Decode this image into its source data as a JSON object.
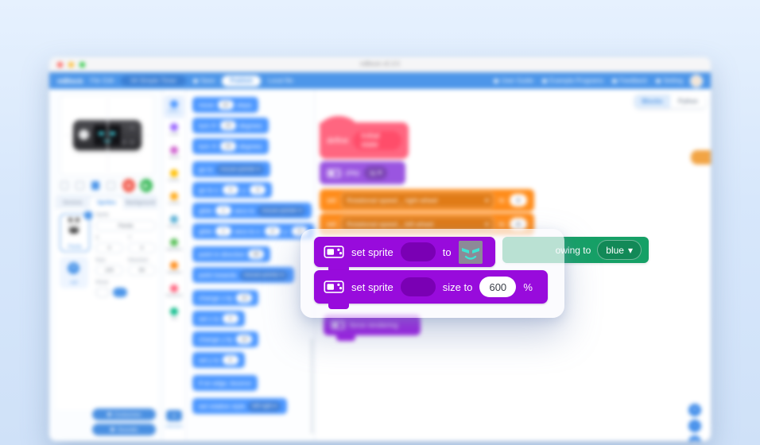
{
  "window": {
    "title": "mBlock v5.3.5"
  },
  "menubar": {
    "brand": "mBlock",
    "left_items": [
      "File",
      "Edit"
    ],
    "project_name": "04 Simple Timer",
    "save_label": "Save",
    "publish_label": "Publish",
    "local_file_label": "Local file",
    "right_items": [
      "User Guide",
      "Example Programs",
      "Feedback",
      "Setting"
    ]
  },
  "stage_panel": {
    "tabs": [
      "Devices",
      "Sprites",
      "Background"
    ],
    "active_tab": "Sprites",
    "sprite_list": {
      "selected_name": "Panda",
      "add_label": "add"
    },
    "properties": {
      "title": "Sprite",
      "name": "Panda",
      "x_label": "X",
      "x": "0",
      "y_label": "Y",
      "y": "0",
      "size_label": "Size",
      "size": "100",
      "direction_label": "Direction",
      "direction": "90",
      "show_label": "Show"
    },
    "bottom_buttons": [
      "Costumes",
      "Sounds"
    ]
  },
  "categories": [
    {
      "label": "Motion",
      "color": "#4C97FF"
    },
    {
      "label": "Looks",
      "color": "#9966FF"
    },
    {
      "label": "Sound",
      "color": "#CF63CF"
    },
    {
      "label": "Events",
      "color": "#FFBF00"
    },
    {
      "label": "Control",
      "color": "#FFAB19"
    },
    {
      "label": "Sensing",
      "color": "#5CB1D6"
    },
    {
      "label": "Operators",
      "color": "#59C059"
    },
    {
      "label": "Variables",
      "color": "#FF8C1A"
    },
    {
      "label": "My Blocks",
      "color": "#FF6680"
    },
    {
      "label": "Pen",
      "color": "#0FBD8C"
    }
  ],
  "extension_label": "extension",
  "palette_blocks": [
    {
      "s": [
        [
          "t",
          "move"
        ],
        [
          "n",
          "10"
        ],
        [
          "t",
          "steps"
        ]
      ],
      "gap": false
    },
    {
      "s": [
        [
          "t",
          "turn ⟳"
        ],
        [
          "n",
          "15"
        ],
        [
          "t",
          "degrees"
        ]
      ],
      "gap": false
    },
    {
      "s": [
        [
          "t",
          "turn ⟲"
        ],
        [
          "n",
          "15"
        ],
        [
          "t",
          "degrees"
        ]
      ],
      "gap": false
    },
    {
      "s": [
        [
          "t",
          "go to"
        ],
        [
          "d",
          "mouse-pointer"
        ]
      ],
      "gap": true
    },
    {
      "s": [
        [
          "t",
          "go to x:"
        ],
        [
          "n",
          "0"
        ],
        [
          "t",
          "y:"
        ],
        [
          "n",
          "0"
        ]
      ],
      "gap": false
    },
    {
      "s": [
        [
          "t",
          "glide"
        ],
        [
          "n",
          "1"
        ],
        [
          "t",
          "secs to"
        ],
        [
          "d",
          "mouse-pointer"
        ]
      ],
      "gap": false
    },
    {
      "s": [
        [
          "t",
          "glide"
        ],
        [
          "n",
          "1"
        ],
        [
          "t",
          "secs to x:"
        ],
        [
          "n",
          "0"
        ],
        [
          "t",
          "y:"
        ],
        [
          "n",
          "0"
        ]
      ],
      "gap": false
    },
    {
      "s": [
        [
          "t",
          "point in direction"
        ],
        [
          "n",
          "90"
        ]
      ],
      "gap": true
    },
    {
      "s": [
        [
          "t",
          "point towards"
        ],
        [
          "d",
          "mouse-pointer"
        ]
      ],
      "gap": false
    },
    {
      "s": [
        [
          "t",
          "change x by"
        ],
        [
          "n",
          "10"
        ]
      ],
      "gap": true
    },
    {
      "s": [
        [
          "t",
          "set x to"
        ],
        [
          "n",
          "0"
        ]
      ],
      "gap": false
    },
    {
      "s": [
        [
          "t",
          "change y by"
        ],
        [
          "n",
          "10"
        ]
      ],
      "gap": false
    },
    {
      "s": [
        [
          "t",
          "set y to"
        ],
        [
          "n",
          "0"
        ]
      ],
      "gap": false
    },
    {
      "s": [
        [
          "t",
          "if on edge, bounce"
        ]
      ],
      "gap": true
    },
    {
      "s": [
        [
          "t",
          "set rotation style"
        ],
        [
          "d",
          "left-right"
        ]
      ],
      "gap": true
    }
  ],
  "script": {
    "define_block": {
      "keyword": "define",
      "name": "Initial state"
    },
    "play_block": {
      "label": "play",
      "option": "hi"
    },
    "set_right_wheel": {
      "set": "set",
      "variable": "Rotational speed _ right wheel",
      "to": "to",
      "value": "0"
    },
    "set_left_wheel": {
      "set": "set",
      "variable": "Rotational speed _ left wheel",
      "to": "to",
      "value": "0"
    },
    "glow_block": {
      "visible_text": "owing to",
      "option": "blue"
    },
    "force_block": {
      "label": "force rendering"
    }
  },
  "focus_blocks": {
    "set_sprite_to": {
      "label": "set sprite",
      "to": "to"
    },
    "set_sprite_size": {
      "label": "set sprite",
      "size_to": "size to",
      "value": "600",
      "unit": "%"
    }
  },
  "workspace": {
    "tabs": [
      "Blocks",
      "Python"
    ],
    "active_tab": "Blocks",
    "zoom_in": "+",
    "zoom_out": "−",
    "zoom_reset": "="
  },
  "colors": {
    "menubar_blue": "#4D96E9",
    "motion_blue": "#4C97FF",
    "sprite_purple": "#980BDC",
    "variables_orange": "#FF8C1A",
    "led_green": "#16A066",
    "define_pink": "#FF6680",
    "side_tab_orange": "#F2A444",
    "face_eyes_cyan": "#3FE3D3"
  }
}
